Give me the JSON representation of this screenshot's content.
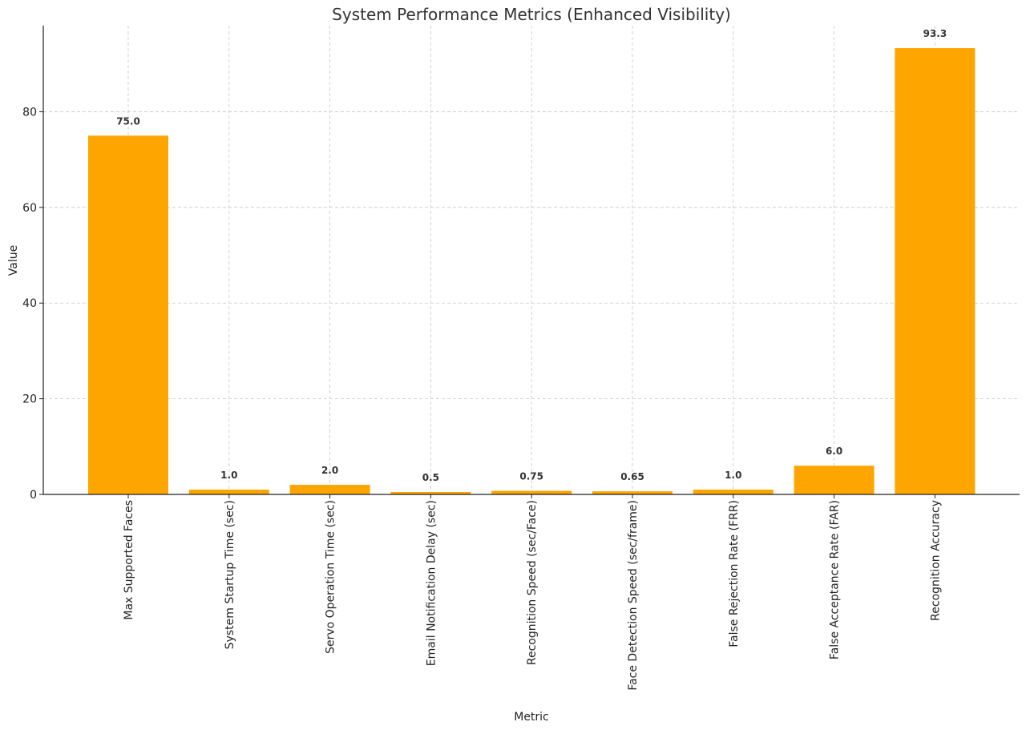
{
  "chart_data": {
    "type": "bar",
    "title": "System Performance Metrics (Enhanced Visibility)",
    "xlabel": "Metric",
    "ylabel": "Value",
    "categories": [
      "Max Supported Faces",
      "System Startup Time (sec)",
      "Servo Operation Time (sec)",
      "Email Notification Delay (sec)",
      "Recognition Speed (sec/Face)",
      "Face Detection Speed (sec/frame)",
      "False Rejection Rate (FRR)",
      "False Acceptance Rate (FAR)",
      "Recognition Accuracy"
    ],
    "values": [
      75.0,
      1.0,
      2.0,
      0.5,
      0.75,
      0.65,
      1.0,
      6.0,
      93.3
    ],
    "value_labels": [
      "75.0",
      "1.0",
      "2.0",
      "0.5",
      "0.75",
      "0.65",
      "1.0",
      "6.0",
      "93.3"
    ],
    "yticks": [
      0,
      20,
      40,
      60,
      80
    ],
    "ylim": [
      0,
      98
    ],
    "bar_color": "#FFA500",
    "grid": true
  }
}
